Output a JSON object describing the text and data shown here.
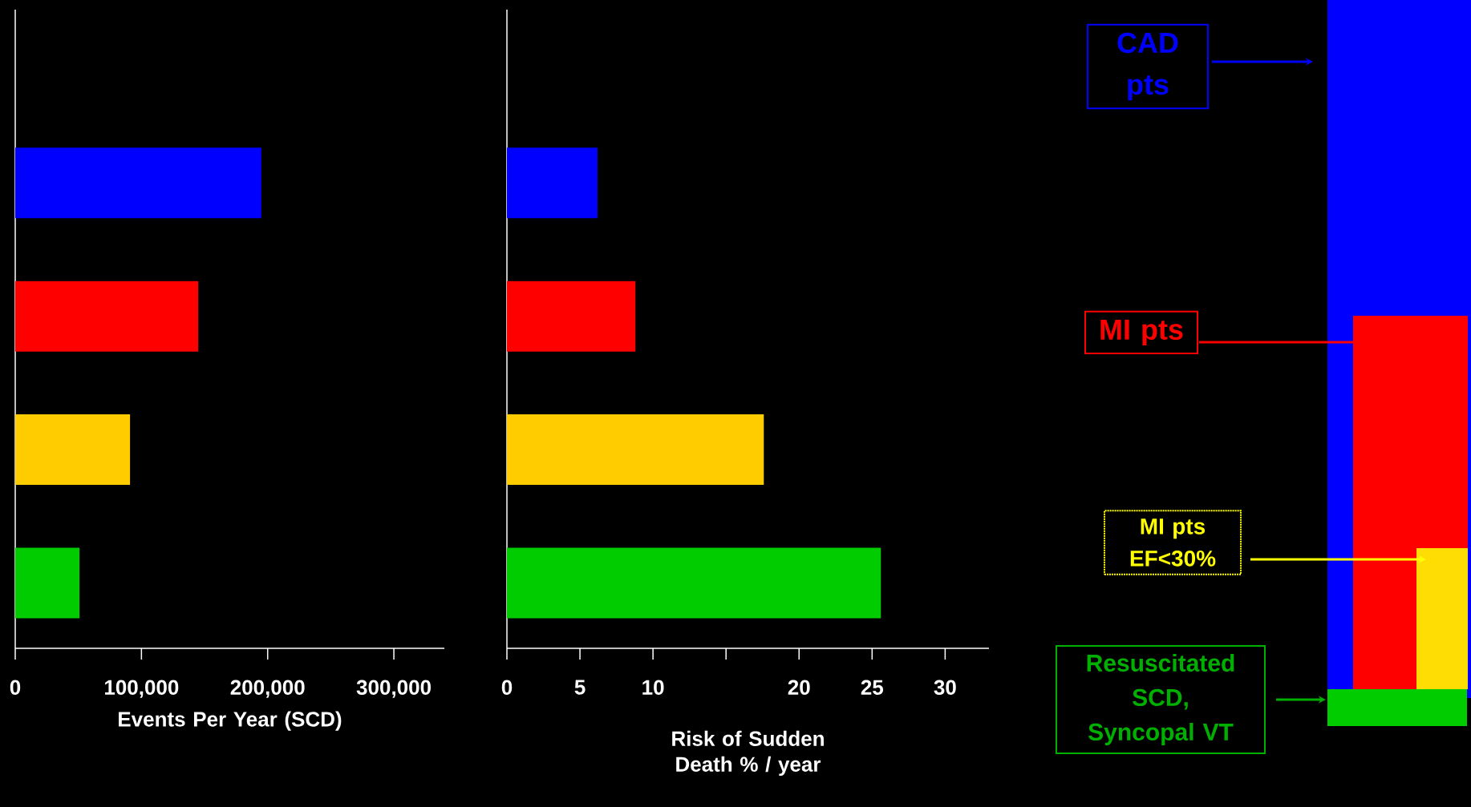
{
  "chart_data": [
    {
      "type": "bar",
      "orientation": "horizontal",
      "categories": [
        null,
        null,
        null,
        null
      ],
      "values": [
        195000,
        145000,
        91000,
        51000
      ],
      "colors": [
        "#0000ff",
        "#ff0000",
        "#ffcc00",
        "#00cc00"
      ],
      "xlim": [
        0,
        340000
      ],
      "xticks": [
        0,
        {
          "value": 100000,
          "label": "100,000"
        },
        {
          "value": 200000,
          "label": "200,000"
        },
        {
          "value": 300000,
          "label": "300,000"
        }
      ],
      "xlabel": "Events Per Year (SCD)"
    },
    {
      "type": "bar",
      "orientation": "horizontal",
      "categories": [
        null,
        null,
        null,
        null
      ],
      "values": [
        6.2,
        8.8,
        17.6,
        25.6
      ],
      "colors": [
        "#0000ff",
        "#ff0000",
        "#ffcc00",
        "#00cc00"
      ],
      "xlim": [
        0,
        33
      ],
      "xticks": [
        0,
        5,
        10,
        {
          "value": 15,
          "label": null
        },
        20,
        25,
        30
      ],
      "xlabel": "Risk of Sudden Death % / year"
    },
    {
      "type": "other",
      "annotations": [
        "CAD pts",
        "MI pts",
        "MI pts EF<30%",
        "Resuscitated SCD, Syncopal VT"
      ]
    }
  ]
}
